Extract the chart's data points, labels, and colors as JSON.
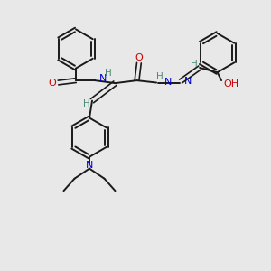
{
  "bg_color": "#e8e8e8",
  "bond_color": "#1a1a1a",
  "nitrogen_color": "#0000cd",
  "oxygen_color": "#cc0000",
  "h_color": "#4a8a7a",
  "figsize": [
    3.0,
    3.0
  ],
  "dpi": 100,
  "xlim": [
    0,
    10
  ],
  "ylim": [
    0,
    10
  ]
}
